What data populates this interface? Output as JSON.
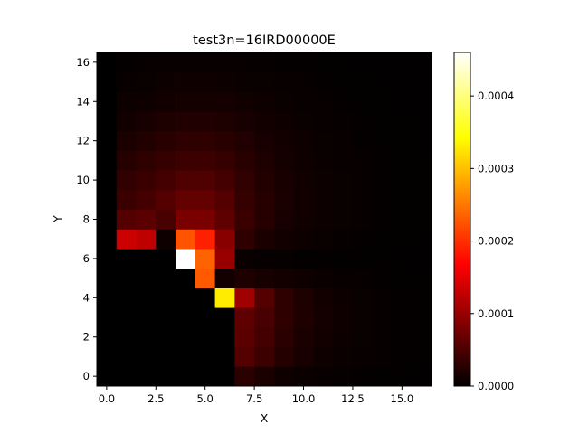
{
  "chart_data": {
    "type": "heatmap",
    "title": "test3n=16IRD00000E",
    "xlabel": "X",
    "ylabel": "Y",
    "xlim": [
      -0.5,
      16.5
    ],
    "ylim": [
      -0.5,
      16.5
    ],
    "x_ticks": [
      "0.0",
      "2.5",
      "5.0",
      "7.5",
      "10.0",
      "12.5",
      "15.0"
    ],
    "x_tick_values": [
      0,
      2.5,
      5,
      7.5,
      10,
      12.5,
      15
    ],
    "y_ticks": [
      "0",
      "2",
      "4",
      "6",
      "8",
      "10",
      "12",
      "14",
      "16"
    ],
    "y_tick_values": [
      0,
      2,
      4,
      6,
      8,
      10,
      12,
      14,
      16
    ],
    "colormap": "hot",
    "colorbar": {
      "vmin": 0,
      "vmax": 0.00046,
      "ticks": [
        "0.0000",
        "0.0001",
        "0.0002",
        "0.0003",
        "0.0004"
      ],
      "tick_values": [
        0,
        0.0001,
        0.0002,
        0.0003,
        0.0004
      ]
    },
    "grid": false,
    "origin": "lower",
    "values": [
      [
        0,
        0,
        0,
        0,
        0,
        0,
        0,
        2.8e-05,
        1.8e-05,
        1e-05,
        7e-06,
        5e-06,
        4e-06,
        3e-06,
        2e-06,
        2e-06,
        1e-06
      ],
      [
        0,
        0,
        0,
        0,
        0,
        0,
        0,
        5.5e-05,
        4e-05,
        2.4e-05,
        1.6e-05,
        1e-05,
        7e-06,
        5e-06,
        4e-06,
        3e-06,
        2e-06
      ],
      [
        0,
        0,
        0,
        0,
        0,
        0,
        0,
        6e-05,
        4.5e-05,
        2.8e-05,
        1.8e-05,
        1.2e-05,
        8e-06,
        6e-06,
        4e-06,
        3e-06,
        2e-06
      ],
      [
        0,
        0,
        0,
        0,
        0,
        0,
        0,
        6.2e-05,
        4.8e-05,
        3e-05,
        2e-05,
        1.3e-05,
        9e-06,
        6e-06,
        4e-06,
        3e-06,
        2e-06
      ],
      [
        0,
        0,
        0,
        0,
        0,
        0,
        0.00033,
        0.000105,
        5.5e-05,
        3e-05,
        1.9e-05,
        1.2e-05,
        8e-06,
        6e-06,
        4e-06,
        3e-06,
        2e-06
      ],
      [
        0,
        0,
        0,
        0,
        0,
        0.00023,
        1.2e-05,
        2e-05,
        1.5e-05,
        1.2e-05,
        9e-06,
        7e-06,
        5e-06,
        4e-06,
        3e-06,
        2e-06,
        2e-06
      ],
      [
        0,
        0,
        0,
        0,
        0.00046,
        0.000235,
        0.0001,
        6e-06,
        4e-06,
        4e-06,
        3e-06,
        3e-06,
        2e-06,
        2e-06,
        2e-06,
        1e-06,
        1e-06
      ],
      [
        0,
        0.000135,
        0.000125,
        1e-05,
        0.000225,
        0.00019,
        9e-05,
        3e-05,
        1.8e-05,
        1.2e-05,
        8e-06,
        6e-06,
        4e-06,
        3e-06,
        2e-06,
        2e-06,
        1e-06
      ],
      [
        0,
        5.5e-05,
        6e-05,
        4.8e-05,
        8e-05,
        8e-05,
        6.2e-05,
        3.8e-05,
        2.5e-05,
        1.6e-05,
        1.1e-05,
        8e-06,
        6e-06,
        4e-06,
        3e-06,
        2e-06,
        2e-06
      ],
      [
        0,
        3.8e-05,
        4.5e-05,
        5.5e-05,
        6.5e-05,
        6.5e-05,
        5.5e-05,
        3.5e-05,
        2.5e-05,
        1.7e-05,
        1.2e-05,
        8e-06,
        6e-06,
        4e-06,
        3e-06,
        2e-06,
        2e-06
      ],
      [
        0,
        3.2e-05,
        3.8e-05,
        4.5e-05,
        5.2e-05,
        5.2e-05,
        4.5e-05,
        3.2e-05,
        2.3e-05,
        1.6e-05,
        1.1e-05,
        8e-06,
        6e-06,
        4e-06,
        3e-06,
        2e-06,
        2e-06
      ],
      [
        0,
        2.5e-05,
        3e-05,
        3.6e-05,
        4e-05,
        4e-05,
        3.6e-05,
        2.7e-05,
        2e-05,
        1.4e-05,
        1e-05,
        7e-06,
        5e-06,
        4e-06,
        3e-06,
        2e-06,
        2e-06
      ],
      [
        0,
        1.8e-05,
        2.2e-05,
        2.7e-05,
        3e-05,
        3e-05,
        2.7e-05,
        2.1e-05,
        1.6e-05,
        1.2e-05,
        9e-06,
        6e-06,
        5e-06,
        3e-06,
        2e-06,
        2e-06,
        1e-06
      ],
      [
        0,
        1.2e-05,
        1.6e-05,
        1.9e-05,
        2.1e-05,
        2.1e-05,
        1.9e-05,
        1.6e-05,
        1.2e-05,
        9e-06,
        7e-06,
        5e-06,
        4e-06,
        3e-06,
        2e-06,
        2e-06,
        1e-06
      ],
      [
        0,
        8e-06,
        1e-05,
        1.2e-05,
        1.4e-05,
        1.4e-05,
        1.3e-05,
        1.1e-05,
        9e-06,
        7e-06,
        5e-06,
        4e-06,
        3e-06,
        2e-06,
        2e-06,
        1e-06,
        1e-06
      ],
      [
        0,
        5e-06,
        6e-06,
        8e-06,
        9e-06,
        9e-06,
        8e-06,
        7e-06,
        6e-06,
        5e-06,
        4e-06,
        3e-06,
        2e-06,
        2e-06,
        1e-06,
        1e-06,
        1e-06
      ],
      [
        0,
        3e-06,
        4e-06,
        5e-06,
        5e-06,
        5e-06,
        5e-06,
        4e-06,
        4e-06,
        3e-06,
        3e-06,
        2e-06,
        2e-06,
        1e-06,
        1e-06,
        1e-06,
        1e-06
      ]
    ]
  }
}
